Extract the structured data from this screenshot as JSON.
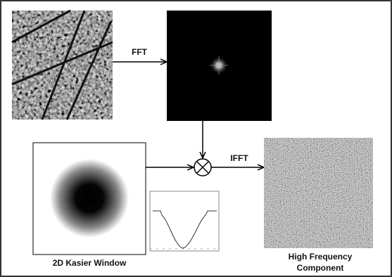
{
  "labels": {
    "fft": "FFT",
    "ifft": "IFFT",
    "window": "2D Kasier Window",
    "output": [
      "High Frequency",
      "Component"
    ]
  }
}
